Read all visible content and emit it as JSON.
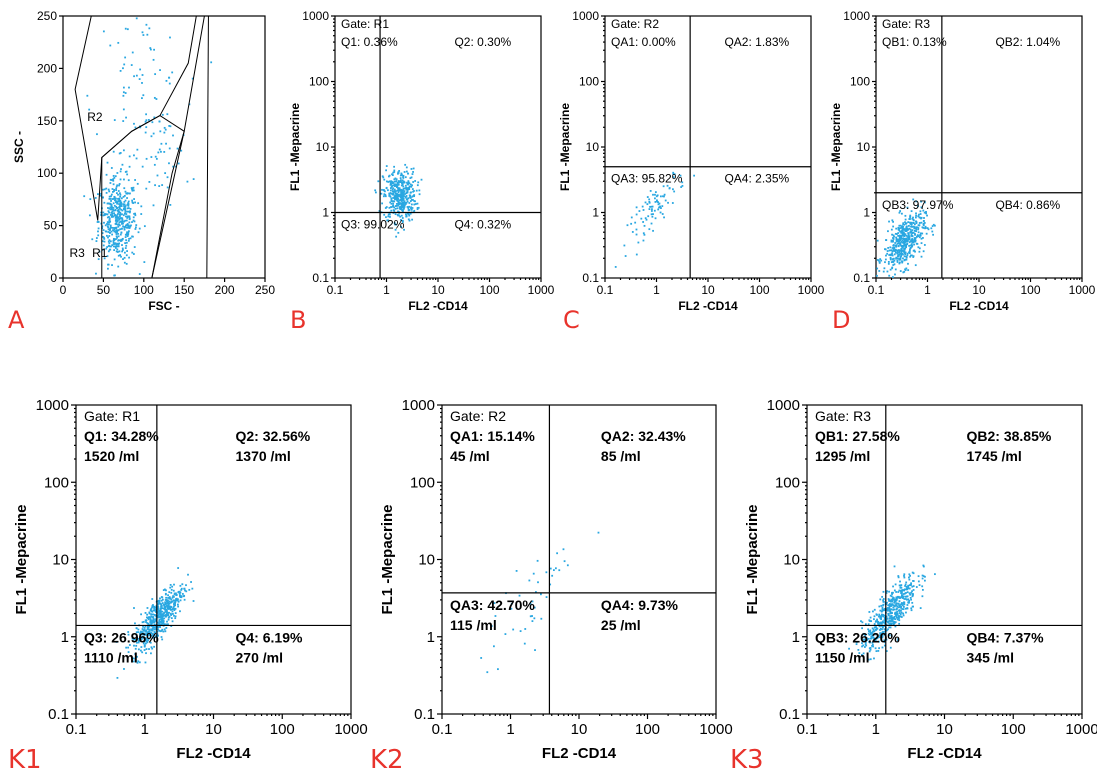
{
  "chart_data": [
    {
      "panel": "A",
      "type": "scatter",
      "scale": "linear",
      "xlabel": "FSC  -",
      "ylabel": "SSC  -",
      "xlim": [
        0,
        250
      ],
      "ylim": [
        0,
        250
      ],
      "xticks": [
        "0",
        "50",
        "100",
        "150",
        "200",
        "250"
      ],
      "yticks": [
        "0",
        "50",
        "100",
        "150",
        "200",
        "250"
      ],
      "gates": [
        {
          "name": "R2",
          "points": [
            [
              43,
              55
            ],
            [
              15,
              180
            ],
            [
              35,
              250
            ],
            [
              165,
              250
            ],
            [
              155,
              205
            ],
            [
              120,
              155
            ],
            [
              85,
              140
            ],
            [
              48,
              115
            ]
          ]
        },
        {
          "name": "R1",
          "points": [
            [
              48,
              0
            ],
            [
              48,
              115
            ],
            [
              85,
              140
            ],
            [
              120,
              155
            ],
            [
              150,
              140
            ],
            [
              135,
              100
            ],
            [
              110,
              0
            ]
          ]
        },
        {
          "name": "R3",
          "points": [
            [
              110,
              0
            ],
            [
              150,
              140
            ],
            [
              175,
              250
            ],
            [
              180,
              250
            ],
            [
              178,
              0
            ]
          ]
        }
      ],
      "labels": [
        "R2",
        "R3",
        "R1"
      ],
      "clusters": [
        {
          "cx": 68,
          "cy": 55,
          "sx": 12,
          "sy": 20,
          "n": 480
        },
        {
          "cx": 95,
          "cy": 170,
          "sx": 28,
          "sy": 45,
          "n": 90
        },
        {
          "cx": 120,
          "cy": 115,
          "sx": 18,
          "sy": 25,
          "n": 40
        }
      ]
    },
    {
      "panel": "B",
      "type": "scatter",
      "scale": "log",
      "xlabel": "FL2 -CD14",
      "ylabel": "FL1  -Mepacrine",
      "xlim": [
        0.1,
        1000
      ],
      "ylim": [
        0.1,
        1000
      ],
      "xticks": [
        "0.1",
        "1",
        "10",
        "100",
        "1000"
      ],
      "yticks": [
        "0.1",
        "1",
        "10",
        "100",
        "1000"
      ],
      "gate": "Gate: R1",
      "quadrant_lines": {
        "x": 0.75,
        "y": 1.0
      },
      "quadrants": {
        "ul": "Q1: 0.36%",
        "ur": "Q2: 0.30%",
        "ll": "Q3: 99.02%",
        "lr": "Q4: 0.32%"
      },
      "counts": {
        "ul": "",
        "ur": "",
        "ll": "",
        "lr": ""
      },
      "clusters": [
        {
          "cx": 0.26,
          "cy": 0.26,
          "sx": 0.16,
          "sy": 0.2,
          "n": 420
        }
      ]
    },
    {
      "panel": "C",
      "type": "scatter",
      "scale": "log",
      "xlabel": "FL2 -CD14",
      "ylabel": "FL1  -Mepacrine",
      "xlim": [
        0.1,
        1000
      ],
      "ylim": [
        0.1,
        1000
      ],
      "xticks": [
        "0.1",
        "1",
        "10",
        "100",
        "1000"
      ],
      "yticks": [
        "0.1",
        "1",
        "10",
        "100",
        "1000"
      ],
      "gate": "Gate: R2",
      "quadrant_lines": {
        "x": 4.5,
        "y": 5.0
      },
      "quadrants": {
        "ul": "QA1: 0.00%",
        "ur": "QA2: 1.83%",
        "ll": "QA3: 95.82%",
        "lr": "QA4: 2.35%"
      },
      "counts": {
        "ul": "",
        "ur": "",
        "ll": "",
        "lr": ""
      },
      "clusters": [
        {
          "cx": 0.0,
          "cy": 0.1,
          "sx": 0.28,
          "sy": 0.28,
          "n": 90,
          "corr": 0.85
        }
      ]
    },
    {
      "panel": "D",
      "type": "scatter",
      "scale": "log",
      "xlabel": "FL2 -CD14",
      "ylabel": "FL1  -Mepacrine",
      "xlim": [
        0.1,
        1000
      ],
      "ylim": [
        0.1,
        1000
      ],
      "xticks": [
        "0.1",
        "1",
        "10",
        "100",
        "1000"
      ],
      "yticks": [
        "0.1",
        "1",
        "10",
        "100",
        "1000"
      ],
      "gate": "Gate: R3",
      "quadrant_lines": {
        "x": 1.9,
        "y": 2.0
      },
      "quadrants": {
        "ul": "QB1: 0.13%",
        "ur": "QB2: 1.04%",
        "ll": "QB3: 97.97%",
        "lr": "QB4: 0.86%"
      },
      "counts": {
        "ul": "",
        "ur": "",
        "ll": "",
        "lr": ""
      },
      "clusters": [
        {
          "cx": -0.45,
          "cy": -0.45,
          "sx": 0.2,
          "sy": 0.22,
          "n": 480,
          "corr": 0.5
        }
      ]
    },
    {
      "panel": "K1",
      "type": "scatter",
      "scale": "log",
      "xlabel": "FL2 -CD14",
      "ylabel": "FL1  -Mepacrine",
      "xlim": [
        0.1,
        1000
      ],
      "ylim": [
        0.1,
        1000
      ],
      "xticks": [
        "0.1",
        "1",
        "10",
        "100",
        "1000"
      ],
      "yticks": [
        "0.1",
        "1",
        "10",
        "100",
        "1000"
      ],
      "gate": "Gate: R1",
      "quadrant_lines": {
        "x": 1.5,
        "y": 1.4
      },
      "quadrants": {
        "ul": "Q1: 34.28%",
        "ur": "Q2: 32.56%",
        "ll": "Q3: 26.96%",
        "lr": "Q4: 6.19%"
      },
      "counts": {
        "ul": "1520 /ml",
        "ur": "1370 /ml",
        "ll": "1110 /ml",
        "lr": "270 /ml"
      },
      "clusters": [
        {
          "cx": 0.2,
          "cy": 0.25,
          "sx": 0.18,
          "sy": 0.22,
          "n": 520,
          "corr": 0.8
        }
      ]
    },
    {
      "panel": "K2",
      "type": "scatter",
      "scale": "log",
      "xlabel": "FL2 -CD14",
      "ylabel": "FL1  -Mepacrine",
      "xlim": [
        0.1,
        1000
      ],
      "ylim": [
        0.1,
        1000
      ],
      "xticks": [
        "0.1",
        "1",
        "10",
        "100",
        "1000"
      ],
      "yticks": [
        "0.1",
        "1",
        "10",
        "100",
        "1000"
      ],
      "gate": "Gate: R2",
      "quadrant_lines": {
        "x": 3.7,
        "y": 3.7
      },
      "quadrants": {
        "ul": "QA1: 15.14%",
        "ur": "QA2: 32.43%",
        "ll": "QA3: 42.70%",
        "lr": "QA4: 9.73%"
      },
      "counts": {
        "ul": "45 /ml",
        "ur": "85 /ml",
        "ll": "115 /ml",
        "lr": "25 /ml"
      },
      "clusters": [
        {
          "cx": 0.3,
          "cy": 0.45,
          "sx": 0.35,
          "sy": 0.45,
          "n": 45,
          "corr": 0.8
        }
      ]
    },
    {
      "panel": "K3",
      "type": "scatter",
      "scale": "log",
      "xlabel": "FL2 -CD14",
      "ylabel": "FL1  -Mepacrine",
      "xlim": [
        0.1,
        1000
      ],
      "ylim": [
        0.1,
        1000
      ],
      "xticks": [
        "0.1",
        "1",
        "10",
        "100",
        "1000"
      ],
      "yticks": [
        "0.1",
        "1",
        "10",
        "100",
        "1000"
      ],
      "gate": "Gate: R3",
      "quadrant_lines": {
        "x": 1.4,
        "y": 1.4
      },
      "quadrants": {
        "ul": "QB1: 27.58%",
        "ur": "QB2: 38.85%",
        "ll": "QB3: 26.20%",
        "lr": "QB4: 7.37%"
      },
      "counts": {
        "ul": "1295 /ml",
        "ur": "1745 /ml",
        "ll": "1150 /ml",
        "lr": "345 /ml"
      },
      "clusters": [
        {
          "cx": 0.2,
          "cy": 0.3,
          "sx": 0.2,
          "sy": 0.25,
          "n": 520,
          "corr": 0.8
        }
      ]
    }
  ],
  "colors": {
    "dots": "#29a7e1",
    "panel_letters": "#e8332c",
    "axes": "#000000"
  }
}
